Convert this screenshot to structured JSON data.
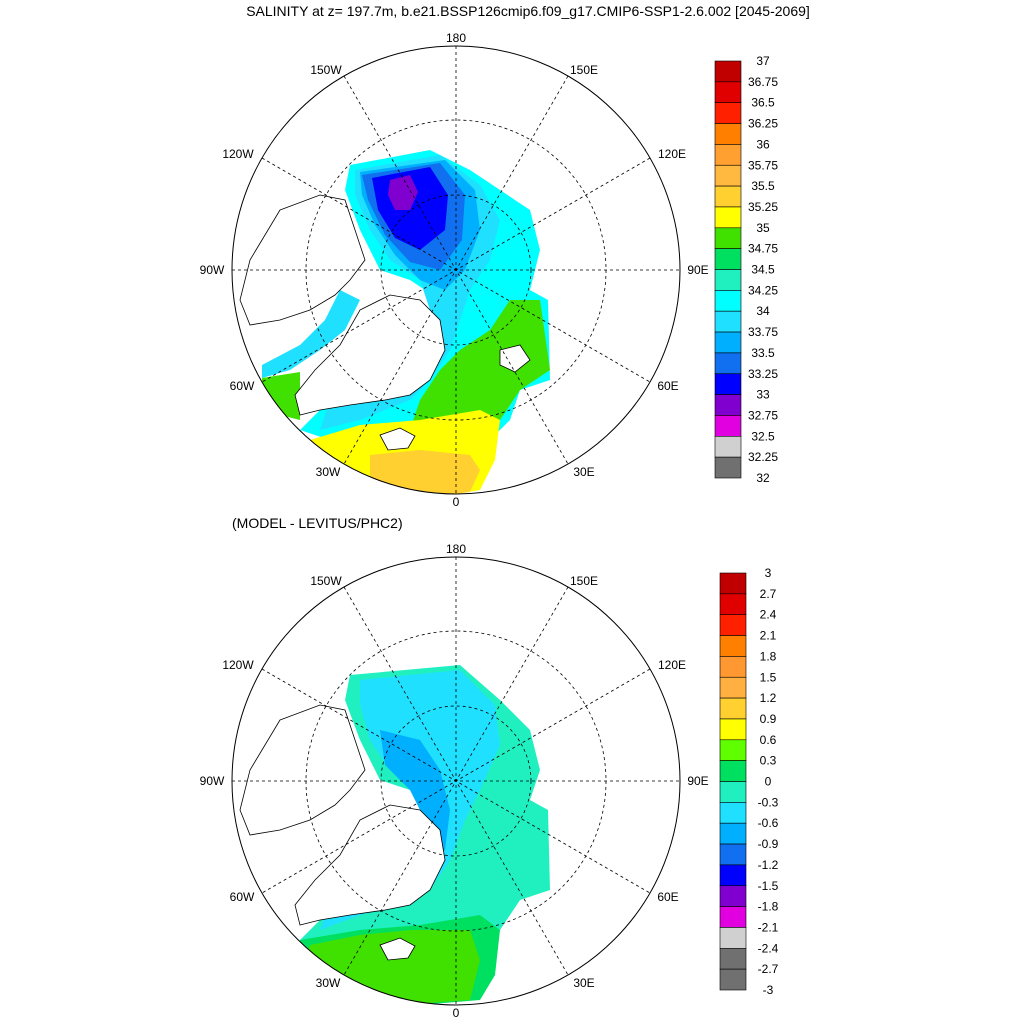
{
  "figure": {
    "title": "SALINITY at z= 197.7m, b.e21.BSSP126cmip6.f09_g17.CMIP6-SSP1-2.6.002 [2045-2069]",
    "diff_title": "(MODEL - LEVITUS/PHC2)"
  },
  "lon_labels": [
    "180",
    "150E",
    "120E",
    "90E",
    "60E",
    "30E",
    "0",
    "30W",
    "60W",
    "90W",
    "120W",
    "150W"
  ],
  "colorbar_top": {
    "labels": [
      "37",
      "36.75",
      "36.5",
      "36.25",
      "36",
      "35.75",
      "35.5",
      "35.25",
      "35",
      "34.75",
      "34.5",
      "34.25",
      "34",
      "33.75",
      "33.5",
      "33.25",
      "33",
      "32.75",
      "32.5",
      "32.25",
      "32"
    ],
    "colors": [
      "#c00000",
      "#e00000",
      "#ff2000",
      "#ff8000",
      "#ffa030",
      "#ffb840",
      "#ffd030",
      "#ffff00",
      "#40e000",
      "#00e060",
      "#20f0c0",
      "#00ffff",
      "#20e0ff",
      "#00b0ff",
      "#1070f0",
      "#0000ff",
      "#8000d0",
      "#e000e0",
      "#d0d0d0",
      "#707070"
    ]
  },
  "colorbar_bottom": {
    "labels": [
      "3",
      "2.7",
      "2.4",
      "2.1",
      "1.8",
      "1.5",
      "1.2",
      "0.9",
      "0.6",
      "0.3",
      "0",
      "-0.3",
      "-0.6",
      "-0.9",
      "-1.2",
      "-1.5",
      "-1.8",
      "-2.1",
      "-2.4",
      "-2.7",
      "-3"
    ],
    "colors": [
      "#c00000",
      "#e00000",
      "#ff2000",
      "#ff8000",
      "#ff9830",
      "#ffb040",
      "#ffd030",
      "#ffff00",
      "#60ff00",
      "#00e060",
      "#20f0c0",
      "#20e0ff",
      "#00b0ff",
      "#1070f0",
      "#0000ff",
      "#8000d0",
      "#e000e0",
      "#d0d0d0",
      "#707070",
      "#707070"
    ]
  },
  "colors": {
    "deep_blue": "#0000ff",
    "blue": "#1070f0",
    "sky": "#00b0ff",
    "cyan": "#20e0ff",
    "aqua": "#00ffff",
    "teal": "#20f0c0",
    "green": "#40e000",
    "lime": "#00e060",
    "yellow": "#ffff00",
    "gold": "#ffd030",
    "purple": "#8000d0"
  }
}
